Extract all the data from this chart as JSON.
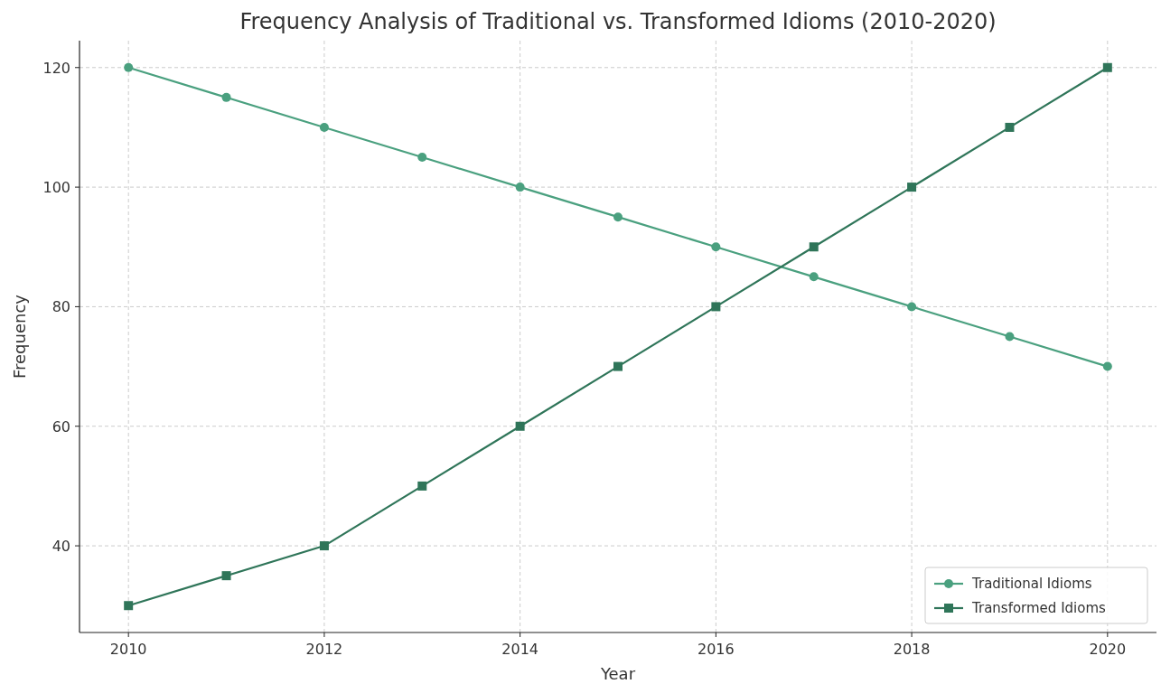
{
  "chart_data": {
    "type": "line",
    "title": "Frequency Analysis of Traditional vs. Transformed Idioms (2010-2020)",
    "xlabel": "Year",
    "ylabel": "Frequency",
    "x": [
      2010,
      2011,
      2012,
      2013,
      2014,
      2015,
      2016,
      2017,
      2018,
      2019,
      2020
    ],
    "series": [
      {
        "name": "Traditional Idioms",
        "color": "#4aa07f",
        "marker": "circle",
        "values": [
          120,
          115,
          110,
          105,
          100,
          95,
          90,
          85,
          80,
          75,
          70
        ]
      },
      {
        "name": "Transformed Idioms",
        "color": "#2f7559",
        "marker": "square",
        "values": [
          30,
          35,
          40,
          50,
          60,
          70,
          80,
          90,
          100,
          110,
          120
        ]
      }
    ],
    "xlim": [
      2009.5,
      2020.5
    ],
    "xticks": [
      2010,
      2012,
      2014,
      2016,
      2018,
      2020
    ],
    "ylim": [
      25.5,
      124.5
    ],
    "yticks": [
      40,
      60,
      80,
      100,
      120
    ],
    "grid": true,
    "legend": "bottom right",
    "line_style": "solid"
  }
}
